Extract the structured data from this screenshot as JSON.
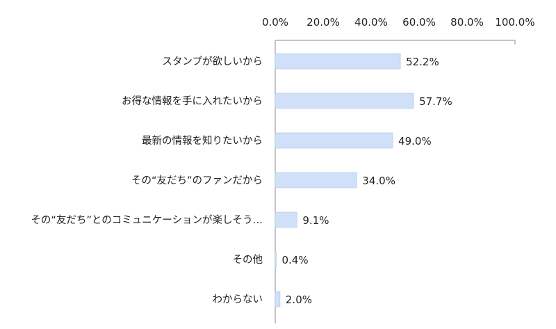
{
  "chart_data": {
    "type": "bar",
    "orientation": "horizontal",
    "categories": [
      "スタンプが欲しいから",
      "お得な情報を手に入れたいから",
      "最新の情報を知りたいから",
      "その“友だち”のファンだから",
      "その“友だち”とのコミュニケーションが楽しそう…",
      "その他",
      "わからない"
    ],
    "values": [
      52.2,
      57.7,
      49.0,
      34.0,
      9.1,
      0.4,
      2.0
    ],
    "data_labels": [
      "52.2%",
      "57.7%",
      "49.0%",
      "34.0%",
      "9.1%",
      "0.4%",
      "2.0%"
    ],
    "tick_labels": [
      "0.0%",
      "20.0%",
      "40.0%",
      "60.0%",
      "80.0%",
      "100.0%"
    ],
    "tick_values": [
      0,
      20,
      40,
      60,
      80,
      100
    ],
    "xlim": [
      0,
      100
    ],
    "axis_position": "top",
    "grid": false,
    "legend": "none",
    "title": "",
    "xlabel": "",
    "ylabel": "",
    "bar_color": "#cfe0f8",
    "bar_border": "#a9c3e8",
    "axis_color": "#8c8c8c"
  }
}
